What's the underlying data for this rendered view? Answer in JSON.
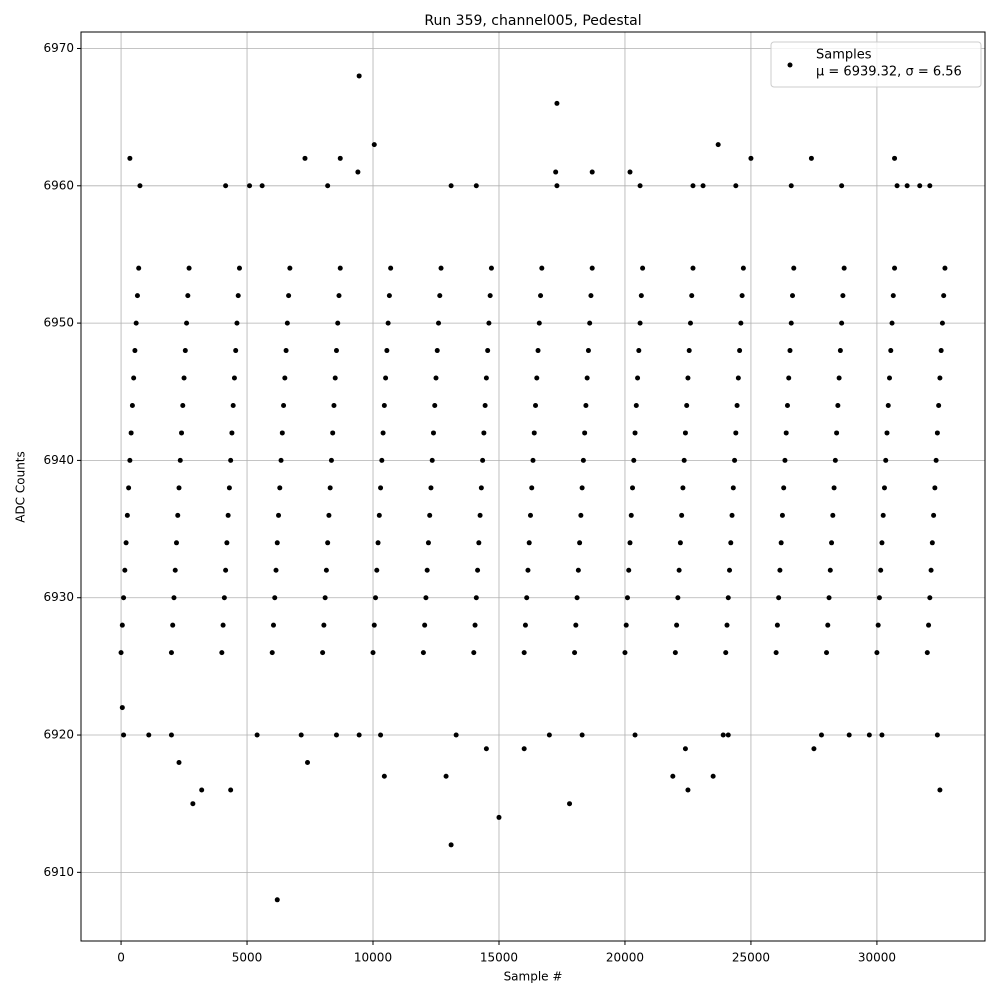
{
  "chart_data": {
    "type": "scatter",
    "title": "Run 359, channel005, Pedestal",
    "x_label": "Sample #",
    "y_label": "ADC Counts",
    "xlim": [
      -1590,
      34290
    ],
    "ylim": [
      6905,
      6971.2
    ],
    "xticks": [
      0,
      5000,
      10000,
      15000,
      20000,
      25000,
      30000
    ],
    "yticks": [
      6910,
      6920,
      6930,
      6940,
      6950,
      6960,
      6970
    ],
    "grid": true,
    "legend_position": "upper right",
    "legend_stats": "μ = 6939.32, σ = 6.56",
    "series": [
      {
        "name": "Samples",
        "color": "#000000",
        "x": [
          6200,
          13100,
          15000,
          9450,
          17300,
          2850,
          3200,
          4350,
          17800,
          22500,
          32500,
          7400,
          2300,
          10450,
          12900,
          21900,
          23500,
          350,
          7300,
          8700,
          10050,
          23700,
          25000,
          27400,
          30700,
          9400,
          17250,
          18700,
          20200,
          750,
          4150,
          5100,
          5600,
          8200,
          13100,
          14100,
          17300,
          20600,
          22700,
          23100,
          24400,
          26600,
          28600,
          30800,
          31200,
          31700,
          32100,
          50,
          100,
          1100,
          2000,
          5400,
          7150,
          8550,
          9450,
          10300,
          13300,
          14500,
          16000,
          17000,
          18300,
          20400,
          22400,
          23900,
          24100,
          27500,
          27800,
          28900,
          29700,
          30200,
          32400,
          0,
          50,
          100,
          150,
          200,
          250,
          300,
          350,
          400,
          450,
          500,
          550,
          600,
          650,
          700,
          2000,
          2050,
          2100,
          2150,
          2200,
          2250,
          2300,
          2350,
          2400,
          2450,
          2500,
          2550,
          2600,
          2650,
          2700,
          4000,
          4050,
          4100,
          4150,
          4200,
          4250,
          4300,
          4350,
          4400,
          4450,
          4500,
          4550,
          4600,
          4650,
          4700,
          6000,
          6050,
          6100,
          6150,
          6200,
          6250,
          6300,
          6350,
          6400,
          6450,
          6500,
          6550,
          6600,
          6650,
          6700,
          8000,
          8050,
          8100,
          8150,
          8200,
          8250,
          8300,
          8350,
          8400,
          8450,
          8500,
          8550,
          8600,
          8650,
          8700,
          10000,
          10050,
          10100,
          10150,
          10200,
          10250,
          10300,
          10350,
          10400,
          10450,
          10500,
          10550,
          10600,
          10650,
          10700,
          12000,
          12050,
          12100,
          12150,
          12200,
          12250,
          12300,
          12350,
          12400,
          12450,
          12500,
          12550,
          12600,
          12650,
          12700,
          14000,
          14050,
          14100,
          14150,
          14200,
          14250,
          14300,
          14350,
          14400,
          14450,
          14500,
          14550,
          14600,
          14650,
          14700,
          16000,
          16050,
          16100,
          16150,
          16200,
          16250,
          16300,
          16350,
          16400,
          16450,
          16500,
          16550,
          16600,
          16650,
          16700,
          18000,
          18050,
          18100,
          18150,
          18200,
          18250,
          18300,
          18350,
          18400,
          18450,
          18500,
          18550,
          18600,
          18650,
          18700,
          20000,
          20050,
          20100,
          20150,
          20200,
          20250,
          20300,
          20350,
          20400,
          20450,
          20500,
          20550,
          20600,
          20650,
          20700,
          22000,
          22050,
          22100,
          22150,
          22200,
          22250,
          22300,
          22350,
          22400,
          22450,
          22500,
          22550,
          22600,
          22650,
          22700,
          24000,
          24050,
          24100,
          24150,
          24200,
          24250,
          24300,
          24350,
          24400,
          24450,
          24500,
          24550,
          24600,
          24650,
          24700,
          26000,
          26050,
          26100,
          26150,
          26200,
          26250,
          26300,
          26350,
          26400,
          26450,
          26500,
          26550,
          26600,
          26650,
          26700,
          28000,
          28050,
          28100,
          28150,
          28200,
          28250,
          28300,
          28350,
          28400,
          28450,
          28500,
          28550,
          28600,
          28650,
          28700,
          30000,
          30050,
          30100,
          30150,
          30200,
          30250,
          30300,
          30350,
          30400,
          30450,
          30500,
          30550,
          30600,
          30650,
          30700,
          32000,
          32050,
          32100,
          32150,
          32200,
          32250,
          32300,
          32350,
          32400,
          32450,
          32500,
          32550,
          32600,
          32650,
          32700
        ],
        "values": [
          6908,
          6912,
          6914,
          6968,
          6966,
          6915,
          6916,
          6916,
          6915,
          6916,
          6916,
          6918,
          6918,
          6917,
          6917,
          6917,
          6917,
          6962,
          6962,
          6962,
          6963,
          6963,
          6962,
          6962,
          6962,
          6961,
          6961,
          6961,
          6961,
          6960,
          6960,
          6960,
          6960,
          6960,
          6960,
          6960,
          6960,
          6960,
          6960,
          6960,
          6960,
          6960,
          6960,
          6960,
          6960,
          6960,
          6960,
          6922,
          6920,
          6920,
          6920,
          6920,
          6920,
          6920,
          6920,
          6920,
          6920,
          6919,
          6919,
          6920,
          6920,
          6920,
          6919,
          6920,
          6920,
          6919,
          6920,
          6920,
          6920,
          6920,
          6920,
          6926,
          6928,
          6930,
          6932,
          6934,
          6936,
          6938,
          6940,
          6942,
          6944,
          6946,
          6948,
          6950,
          6952,
          6954,
          6926,
          6928,
          6930,
          6932,
          6934,
          6936,
          6938,
          6940,
          6942,
          6944,
          6946,
          6948,
          6950,
          6952,
          6954,
          6926,
          6928,
          6930,
          6932,
          6934,
          6936,
          6938,
          6940,
          6942,
          6944,
          6946,
          6948,
          6950,
          6952,
          6954,
          6926,
          6928,
          6930,
          6932,
          6934,
          6936,
          6938,
          6940,
          6942,
          6944,
          6946,
          6948,
          6950,
          6952,
          6954,
          6926,
          6928,
          6930,
          6932,
          6934,
          6936,
          6938,
          6940,
          6942,
          6944,
          6946,
          6948,
          6950,
          6952,
          6954,
          6926,
          6928,
          6930,
          6932,
          6934,
          6936,
          6938,
          6940,
          6942,
          6944,
          6946,
          6948,
          6950,
          6952,
          6954,
          6926,
          6928,
          6930,
          6932,
          6934,
          6936,
          6938,
          6940,
          6942,
          6944,
          6946,
          6948,
          6950,
          6952,
          6954,
          6926,
          6928,
          6930,
          6932,
          6934,
          6936,
          6938,
          6940,
          6942,
          6944,
          6946,
          6948,
          6950,
          6952,
          6954,
          6926,
          6928,
          6930,
          6932,
          6934,
          6936,
          6938,
          6940,
          6942,
          6944,
          6946,
          6948,
          6950,
          6952,
          6954,
          6926,
          6928,
          6930,
          6932,
          6934,
          6936,
          6938,
          6940,
          6942,
          6944,
          6946,
          6948,
          6950,
          6952,
          6954,
          6926,
          6928,
          6930,
          6932,
          6934,
          6936,
          6938,
          6940,
          6942,
          6944,
          6946,
          6948,
          6950,
          6952,
          6954,
          6926,
          6928,
          6930,
          6932,
          6934,
          6936,
          6938,
          6940,
          6942,
          6944,
          6946,
          6948,
          6950,
          6952,
          6954,
          6926,
          6928,
          6930,
          6932,
          6934,
          6936,
          6938,
          6940,
          6942,
          6944,
          6946,
          6948,
          6950,
          6952,
          6954,
          6926,
          6928,
          6930,
          6932,
          6934,
          6936,
          6938,
          6940,
          6942,
          6944,
          6946,
          6948,
          6950,
          6952,
          6954,
          6926,
          6928,
          6930,
          6932,
          6934,
          6936,
          6938,
          6940,
          6942,
          6944,
          6946,
          6948,
          6950,
          6952,
          6954,
          6926,
          6928,
          6930,
          6932,
          6934,
          6936,
          6938,
          6940,
          6942,
          6944,
          6946,
          6948,
          6950,
          6952,
          6954,
          6926,
          6928,
          6930,
          6932,
          6934,
          6936,
          6938,
          6940,
          6942,
          6944,
          6946,
          6948,
          6950,
          6952,
          6954
        ]
      }
    ]
  }
}
